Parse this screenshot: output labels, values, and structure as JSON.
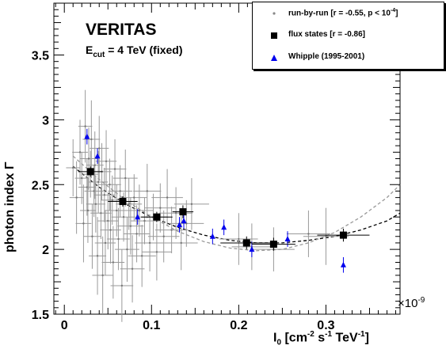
{
  "chart_data": {
    "type": "scatter",
    "title": "VERITAS",
    "subtitle_main": "E",
    "subtitle_sub": "cut",
    "subtitle_rest": " = 4 TeV (fixed)",
    "ylabel": "photon index  Γ",
    "xlabel_main": "I",
    "xlabel_sub": "0",
    "xlabel_rest_1": " [cm",
    "xlabel_sup_1": "-2",
    "xlabel_rest_2": " s",
    "xlabel_sup_2": "-1",
    "xlabel_rest_3": " TeV",
    "xlabel_sup_3": "-1",
    "xlabel_rest_4": "]",
    "x_exponent_base": "×10",
    "x_exponent_power": "-9",
    "xlim": [
      -0.012,
      0.385
    ],
    "ylim": [
      1.5,
      3.9
    ],
    "x_ticks": [
      0,
      0.1,
      0.2,
      0.3
    ],
    "x_tick_labels": [
      "0",
      "0.1",
      "0.2",
      "0.3"
    ],
    "y_ticks": [
      1.5,
      2,
      2.5,
      3,
      3.5
    ],
    "y_tick_labels": [
      "1.5",
      "2",
      "2.5",
      "3",
      "3.5"
    ],
    "legend": {
      "position": "top-right",
      "entries": [
        {
          "label_main": "run-by-run [r = -0.55, p < 10",
          "label_sup": "-4",
          "label_end": "]",
          "marker": "dot"
        },
        {
          "label_main": "flux states [r = -0.86]",
          "label_sup": "",
          "label_end": "",
          "marker": "square"
        },
        {
          "label_main": "Whipple (1995-2001)",
          "label_sup": "",
          "label_end": "",
          "marker": "triangle"
        }
      ]
    },
    "series": [
      {
        "name": "run-by-run [r = -0.55, p < 10^-4]",
        "color": "#999999",
        "points": [
          {
            "x": 0.01,
            "y": 2.63,
            "xe": 0.008,
            "ye": 0.22
          },
          {
            "x": 0.014,
            "y": 2.4,
            "xe": 0.008,
            "ye": 0.28
          },
          {
            "x": 0.018,
            "y": 2.75,
            "xe": 0.009,
            "ye": 0.25
          },
          {
            "x": 0.02,
            "y": 2.55,
            "xe": 0.008,
            "ye": 0.2
          },
          {
            "x": 0.022,
            "y": 2.2,
            "xe": 0.009,
            "ye": 0.3
          },
          {
            "x": 0.024,
            "y": 2.95,
            "xe": 0.008,
            "ye": 0.28
          },
          {
            "x": 0.026,
            "y": 2.48,
            "xe": 0.01,
            "ye": 0.22
          },
          {
            "x": 0.027,
            "y": 2.3,
            "xe": 0.009,
            "ye": 0.25
          },
          {
            "x": 0.028,
            "y": 2.7,
            "xe": 0.01,
            "ye": 0.24
          },
          {
            "x": 0.03,
            "y": 2.58,
            "xe": 0.009,
            "ye": 0.18
          },
          {
            "x": 0.031,
            "y": 2.85,
            "xe": 0.01,
            "ye": 0.3
          },
          {
            "x": 0.032,
            "y": 2.1,
            "xe": 0.01,
            "ye": 0.25
          },
          {
            "x": 0.034,
            "y": 2.45,
            "xe": 0.011,
            "ye": 0.2
          },
          {
            "x": 0.035,
            "y": 2.65,
            "xe": 0.01,
            "ye": 0.26
          },
          {
            "x": 0.036,
            "y": 2.35,
            "xe": 0.011,
            "ye": 0.22
          },
          {
            "x": 0.038,
            "y": 1.95,
            "xe": 0.01,
            "ye": 0.3
          },
          {
            "x": 0.039,
            "y": 2.52,
            "xe": 0.011,
            "ye": 0.24
          },
          {
            "x": 0.04,
            "y": 2.78,
            "xe": 0.011,
            "ye": 0.25
          },
          {
            "x": 0.042,
            "y": 2.28,
            "xe": 0.012,
            "ye": 0.2
          },
          {
            "x": 0.043,
            "y": 2.6,
            "xe": 0.011,
            "ye": 0.22
          },
          {
            "x": 0.044,
            "y": 1.8,
            "xe": 0.012,
            "ye": 0.3
          },
          {
            "x": 0.046,
            "y": 2.42,
            "xe": 0.012,
            "ye": 0.21
          },
          {
            "x": 0.047,
            "y": 2.05,
            "xe": 0.012,
            "ye": 0.25
          },
          {
            "x": 0.048,
            "y": 2.68,
            "xe": 0.012,
            "ye": 0.24
          },
          {
            "x": 0.05,
            "y": 2.22,
            "xe": 0.012,
            "ye": 0.22
          },
          {
            "x": 0.052,
            "y": 2.5,
            "xe": 0.013,
            "ye": 0.2
          },
          {
            "x": 0.053,
            "y": 2.15,
            "xe": 0.012,
            "ye": 0.26
          },
          {
            "x": 0.055,
            "y": 2.38,
            "xe": 0.013,
            "ye": 0.19
          },
          {
            "x": 0.056,
            "y": 1.9,
            "xe": 0.013,
            "ye": 0.28
          },
          {
            "x": 0.058,
            "y": 2.62,
            "xe": 0.013,
            "ye": 0.23
          },
          {
            "x": 0.06,
            "y": 2.3,
            "xe": 0.014,
            "ye": 0.2
          },
          {
            "x": 0.062,
            "y": 2.08,
            "xe": 0.013,
            "ye": 0.24
          },
          {
            "x": 0.064,
            "y": 2.45,
            "xe": 0.014,
            "ye": 0.2
          },
          {
            "x": 0.066,
            "y": 1.72,
            "xe": 0.013,
            "ye": 0.28
          },
          {
            "x": 0.068,
            "y": 2.25,
            "xe": 0.014,
            "ye": 0.19
          },
          {
            "x": 0.07,
            "y": 2.55,
            "xe": 0.014,
            "ye": 0.22
          },
          {
            "x": 0.072,
            "y": 2.0,
            "xe": 0.014,
            "ye": 0.25
          },
          {
            "x": 0.074,
            "y": 2.35,
            "xe": 0.015,
            "ye": 0.2
          },
          {
            "x": 0.076,
            "y": 2.18,
            "xe": 0.015,
            "ye": 0.22
          },
          {
            "x": 0.078,
            "y": 1.85,
            "xe": 0.014,
            "ye": 0.26
          },
          {
            "x": 0.08,
            "y": 2.4,
            "xe": 0.015,
            "ye": 0.18
          },
          {
            "x": 0.083,
            "y": 2.12,
            "xe": 0.015,
            "ye": 0.22
          },
          {
            "x": 0.086,
            "y": 2.3,
            "xe": 0.016,
            "ye": 0.2
          },
          {
            "x": 0.089,
            "y": 1.95,
            "xe": 0.016,
            "ye": 0.24
          },
          {
            "x": 0.092,
            "y": 2.22,
            "xe": 0.016,
            "ye": 0.18
          },
          {
            "x": 0.095,
            "y": 2.45,
            "xe": 0.016,
            "ye": 0.21
          },
          {
            "x": 0.098,
            "y": 2.05,
            "xe": 0.017,
            "ye": 0.22
          },
          {
            "x": 0.102,
            "y": 2.25,
            "xe": 0.017,
            "ye": 0.18
          },
          {
            "x": 0.106,
            "y": 1.98,
            "xe": 0.017,
            "ye": 0.22
          },
          {
            "x": 0.11,
            "y": 2.32,
            "xe": 0.018,
            "ye": 0.19
          },
          {
            "x": 0.114,
            "y": 2.1,
            "xe": 0.018,
            "ye": 0.2
          },
          {
            "x": 0.118,
            "y": 2.4,
            "xe": 0.018,
            "ye": 0.22
          },
          {
            "x": 0.123,
            "y": 2.15,
            "xe": 0.019,
            "ye": 0.18
          },
          {
            "x": 0.128,
            "y": 2.28,
            "xe": 0.019,
            "ye": 0.2
          },
          {
            "x": 0.134,
            "y": 2.05,
            "xe": 0.019,
            "ye": 0.21
          },
          {
            "x": 0.14,
            "y": 2.2,
            "xe": 0.02,
            "ye": 0.18
          },
          {
            "x": 0.146,
            "y": 2.35,
            "xe": 0.02,
            "ye": 0.2
          },
          {
            "x": 0.2,
            "y": 2.08,
            "xe": 0.022,
            "ye": 0.2
          },
          {
            "x": 0.215,
            "y": 2.02,
            "xe": 0.023,
            "ye": 0.18
          },
          {
            "x": 0.24,
            "y": 2.0,
            "xe": 0.024,
            "ye": 0.17
          },
          {
            "x": 0.28,
            "y": 2.12,
            "xe": 0.025,
            "ye": 0.18
          },
          {
            "x": 0.3,
            "y": 2.1,
            "xe": 0.026,
            "ye": 0.22
          }
        ]
      },
      {
        "name": "flux states [r = -0.86]",
        "color": "#000000",
        "points": [
          {
            "x": 0.03,
            "y": 2.6,
            "xe": 0.014,
            "ye": 0.04
          },
          {
            "x": 0.067,
            "y": 2.37,
            "xe": 0.017,
            "ye": 0.04
          },
          {
            "x": 0.106,
            "y": 2.25,
            "xe": 0.018,
            "ye": 0.04
          },
          {
            "x": 0.136,
            "y": 2.29,
            "xe": 0.012,
            "ye": 0.05
          },
          {
            "x": 0.209,
            "y": 2.05,
            "xe": 0.03,
            "ye": 0.05
          },
          {
            "x": 0.24,
            "y": 2.04,
            "xe": 0.025,
            "ye": 0.05
          },
          {
            "x": 0.32,
            "y": 2.11,
            "xe": 0.03,
            "ye": 0.05
          }
        ]
      },
      {
        "name": "Whipple (1995-2001)",
        "color": "#0000ee",
        "points": [
          {
            "x": 0.026,
            "y": 2.87,
            "ye": 0.06
          },
          {
            "x": 0.038,
            "y": 2.72,
            "ye": 0.06
          },
          {
            "x": 0.084,
            "y": 2.25,
            "ye": 0.06
          },
          {
            "x": 0.132,
            "y": 2.19,
            "ye": 0.06
          },
          {
            "x": 0.137,
            "y": 2.22,
            "ye": 0.06
          },
          {
            "x": 0.17,
            "y": 2.1,
            "ye": 0.06
          },
          {
            "x": 0.183,
            "y": 2.17,
            "ye": 0.06
          },
          {
            "x": 0.215,
            "y": 2.0,
            "ye": 0.06
          },
          {
            "x": 0.256,
            "y": 2.08,
            "ye": 0.06
          },
          {
            "x": 0.32,
            "y": 1.88,
            "ye": 0.06
          }
        ]
      }
    ],
    "fit_curves": [
      {
        "style": "dashed-black",
        "color": "#000000",
        "points": [
          {
            "x": 0.01,
            "y": 2.64
          },
          {
            "x": 0.04,
            "y": 2.48
          },
          {
            "x": 0.07,
            "y": 2.35
          },
          {
            "x": 0.1,
            "y": 2.25
          },
          {
            "x": 0.13,
            "y": 2.17
          },
          {
            "x": 0.16,
            "y": 2.11
          },
          {
            "x": 0.19,
            "y": 2.07
          },
          {
            "x": 0.22,
            "y": 2.05
          },
          {
            "x": 0.25,
            "y": 2.05
          },
          {
            "x": 0.28,
            "y": 2.07
          },
          {
            "x": 0.31,
            "y": 2.1
          },
          {
            "x": 0.34,
            "y": 2.15
          },
          {
            "x": 0.37,
            "y": 2.22
          },
          {
            "x": 0.385,
            "y": 2.28
          }
        ]
      },
      {
        "style": "dashed-gray",
        "color": "#999999",
        "points": [
          {
            "x": 0.01,
            "y": 2.72
          },
          {
            "x": 0.04,
            "y": 2.54
          },
          {
            "x": 0.07,
            "y": 2.38
          },
          {
            "x": 0.1,
            "y": 2.25
          },
          {
            "x": 0.13,
            "y": 2.14
          },
          {
            "x": 0.16,
            "y": 2.06
          },
          {
            "x": 0.19,
            "y": 2.01
          },
          {
            "x": 0.22,
            "y": 1.99
          },
          {
            "x": 0.25,
            "y": 2.0
          },
          {
            "x": 0.28,
            "y": 2.05
          },
          {
            "x": 0.31,
            "y": 2.13
          },
          {
            "x": 0.34,
            "y": 2.25
          },
          {
            "x": 0.37,
            "y": 2.4
          },
          {
            "x": 0.385,
            "y": 2.5
          }
        ]
      }
    ]
  }
}
